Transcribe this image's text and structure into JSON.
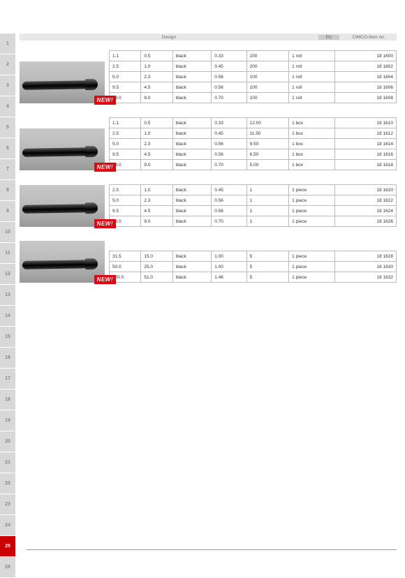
{
  "header": {
    "design": "Design",
    "pu": "PU",
    "item": "CIMCO-Item no."
  },
  "sidebar": {
    "tabs": [
      {
        "n": "1",
        "active": false
      },
      {
        "n": "2",
        "active": false
      },
      {
        "n": "3",
        "active": false
      },
      {
        "n": "4",
        "active": false
      },
      {
        "n": "5",
        "active": false
      },
      {
        "n": "6",
        "active": false
      },
      {
        "n": "7",
        "active": false
      },
      {
        "n": "8",
        "active": false
      },
      {
        "n": "9",
        "active": false
      },
      {
        "n": "10",
        "active": false
      },
      {
        "n": "11",
        "active": false
      },
      {
        "n": "12",
        "active": false
      },
      {
        "n": "13",
        "active": false
      },
      {
        "n": "14",
        "active": false
      },
      {
        "n": "15",
        "active": false
      },
      {
        "n": "16",
        "active": false
      },
      {
        "n": "17",
        "active": false
      },
      {
        "n": "18",
        "active": false
      },
      {
        "n": "19",
        "active": false
      },
      {
        "n": "20",
        "active": false
      },
      {
        "n": "21",
        "active": false
      },
      {
        "n": "22",
        "active": false
      },
      {
        "n": "23",
        "active": false
      },
      {
        "n": "24",
        "active": false
      },
      {
        "n": "25",
        "active": true
      },
      {
        "n": "26",
        "active": false
      }
    ]
  },
  "new_label": "NEW!",
  "sections": [
    {
      "rows": [
        {
          "c1": "1.1",
          "c2": "0.5",
          "c3": "black",
          "c4": "0.33",
          "c5": "200",
          "c6": "1 roll",
          "c7": "18 1600"
        },
        {
          "c1": "2.5",
          "c2": "1.0",
          "c3": "black",
          "c4": "0.45",
          "c5": "200",
          "c6": "1 roll",
          "c7": "18 1602"
        },
        {
          "c1": "5.0",
          "c2": "2.3",
          "c3": "black",
          "c4": "0.56",
          "c5": "100",
          "c6": "1 roll",
          "c7": "18 1604"
        },
        {
          "c1": "9.5",
          "c2": "4.5",
          "c3": "black",
          "c4": "0.56",
          "c5": "100",
          "c6": "1 roll",
          "c7": "18 1606"
        },
        {
          "c1": "19.0",
          "c2": "9.0",
          "c3": "black",
          "c4": "0.70",
          "c5": "100",
          "c6": "1 roll",
          "c7": "18 1608"
        }
      ]
    },
    {
      "rows": [
        {
          "c1": "1.1",
          "c2": "0.5",
          "c3": "black",
          "c4": "0.33",
          "c5": "12.00",
          "c6": "1 box",
          "c7": "18 1610"
        },
        {
          "c1": "2.5",
          "c2": "1.0",
          "c3": "black",
          "c4": "0.45",
          "c5": "11.50",
          "c6": "1 box",
          "c7": "18 1612"
        },
        {
          "c1": "5.0",
          "c2": "2.3",
          "c3": "black",
          "c4": "0.56",
          "c5": "9.50",
          "c6": "1 box",
          "c7": "18 1614"
        },
        {
          "c1": "9.5",
          "c2": "4.5",
          "c3": "black",
          "c4": "0.56",
          "c5": "6.50",
          "c6": "1 box",
          "c7": "18 1616"
        },
        {
          "c1": "19.0",
          "c2": "9.0",
          "c3": "black",
          "c4": "0.70",
          "c5": "5.00",
          "c6": "1 box",
          "c7": "18 1618"
        }
      ]
    },
    {
      "rows": [
        {
          "c1": "2.5",
          "c2": "1.0",
          "c3": "black",
          "c4": "0.45",
          "c5": "1",
          "c6": "1 piece",
          "c7": "18 1620"
        },
        {
          "c1": "5.0",
          "c2": "2.3",
          "c3": "black",
          "c4": "0.56",
          "c5": "1",
          "c6": "1 piece",
          "c7": "18 1622"
        },
        {
          "c1": "9.5",
          "c2": "4.5",
          "c3": "black",
          "c4": "0.56",
          "c5": "1",
          "c6": "1 piece",
          "c7": "18 1624"
        },
        {
          "c1": "19.0",
          "c2": "9.0",
          "c3": "black",
          "c4": "0.70",
          "c5": "1",
          "c6": "1 piece",
          "c7": "18 1626"
        }
      ]
    },
    {
      "rows": [
        {
          "c1": "31.5",
          "c2": "15.0",
          "c3": "black",
          "c4": "1.00",
          "c5": "5",
          "c6": "1 piece",
          "c7": "18 1628"
        },
        {
          "c1": "50.0",
          "c2": "25.0",
          "c3": "black",
          "c4": "1.00",
          "c5": "5",
          "c6": "1 piece",
          "c7": "18 1630"
        },
        {
          "c1": "100.0",
          "c2": "51.0",
          "c3": "black",
          "c4": "1.46",
          "c5": "5",
          "c6": "1 piece",
          "c7": "18 1632"
        }
      ]
    }
  ]
}
